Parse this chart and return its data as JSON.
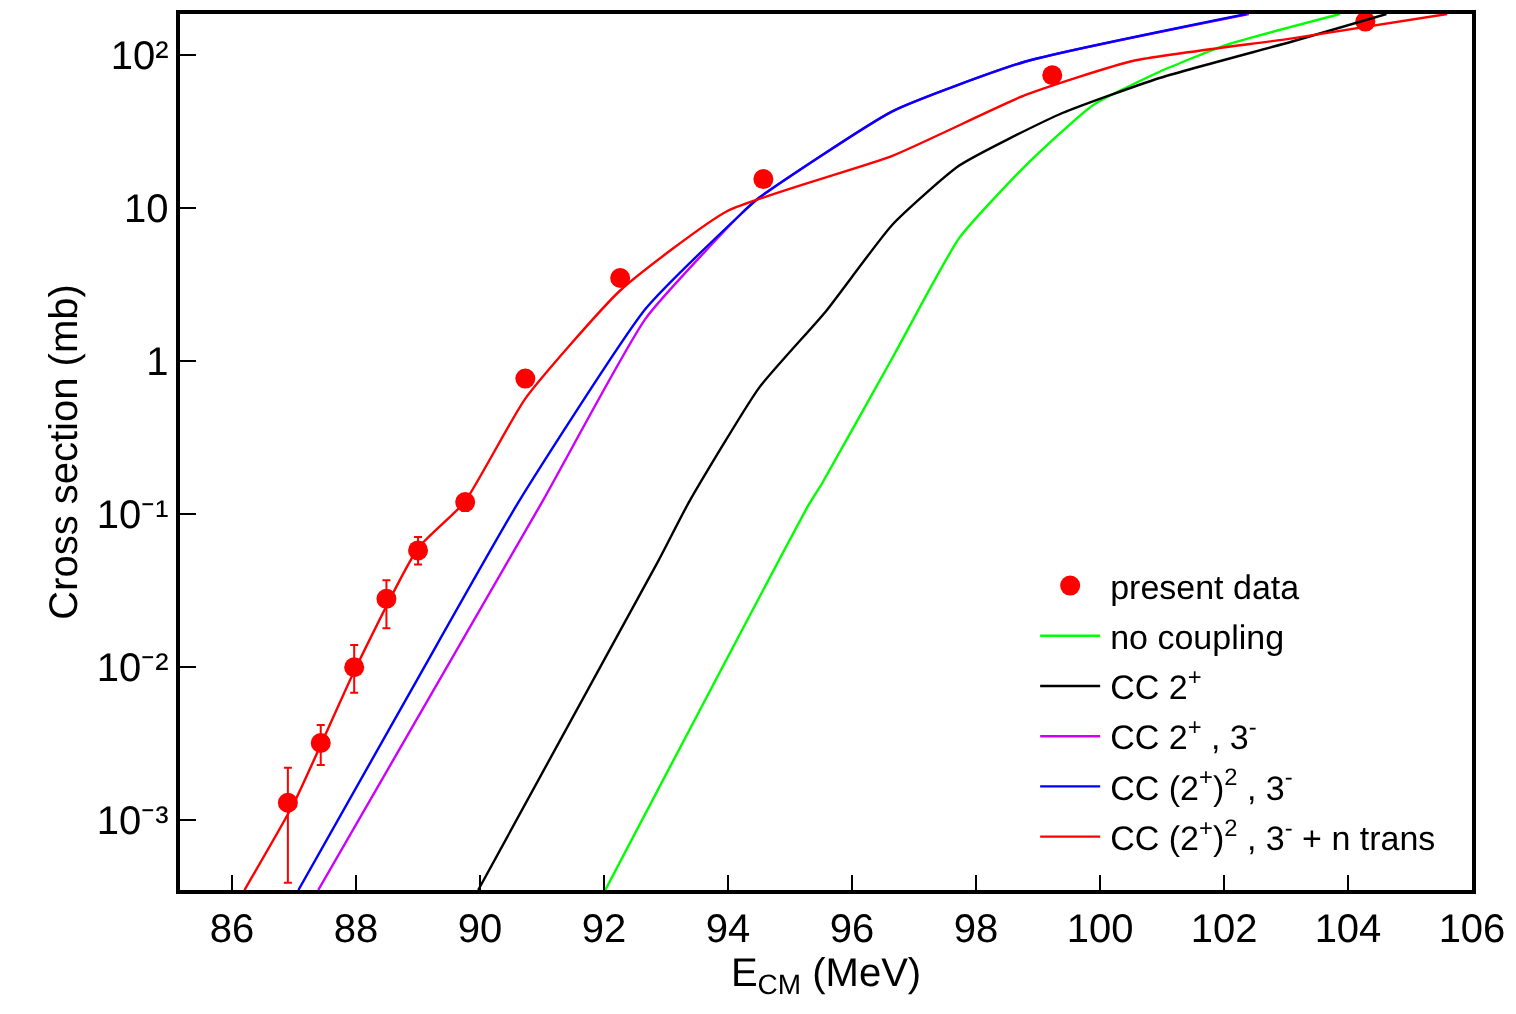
{
  "chart_data": {
    "type": "line",
    "xlabel": "E$_{CM}$ (MeV)",
    "ylabel": "Cross section (mb)",
    "log": "y",
    "legend": "bottom right",
    "xlim": [
      85.16,
      106
    ],
    "xticks": [
      86,
      88,
      90,
      92,
      94,
      96,
      98,
      100,
      102,
      104,
      106
    ],
    "ylim": [
      0.00035,
      186
    ],
    "yticks": [
      {
        "value": 0.001,
        "label": "10⁻³"
      },
      {
        "value": 0.01,
        "label": "10⁻²"
      },
      {
        "value": 0.1,
        "label": "10⁻¹"
      },
      1,
      10,
      {
        "value": 100,
        "label": "10²"
      }
    ],
    "series": [
      {
        "name": "present data",
        "type": "scatter",
        "marker": "circle",
        "color": "#ff0000",
        "x": [
          86.9,
          87.43,
          87.97,
          88.49,
          89.0,
          89.76,
          90.73,
          92.26,
          94.57,
          99.23,
          104.28
        ],
        "values": [
          0.0013,
          0.0032,
          0.01,
          0.028,
          0.058,
          0.12,
          0.77,
          3.5,
          15.5,
          74,
          166
        ],
        "errors": [
          [
            0.00039,
            0.0022
          ],
          [
            0.0023,
            0.0042
          ],
          [
            0.0068,
            0.014
          ],
          [
            0.018,
            0.037
          ],
          [
            0.047,
            0.071
          ],
          [
            0.105,
            0.135
          ],
          null,
          null,
          null,
          null,
          null
        ]
      },
      {
        "name": "no coupling",
        "marker": "none",
        "color": "#00ff00",
        "x": [
          92.02,
          95.3,
          95.52,
          96.65,
          97.73,
          98.8,
          99.88,
          100.96,
          102.04,
          103.87
        ],
        "values": [
          0.00035,
          0.115,
          0.16,
          1.05,
          6.4,
          19,
          47,
          78,
          117,
          186
        ]
      },
      {
        "name": "CC 2$^{+}$",
        "marker": "none",
        "color": "#000000",
        "x": [
          89.97,
          92.88,
          93.37,
          94.5,
          95.57,
          96.65,
          97.73,
          99.34,
          100.96,
          103.1,
          104.62
        ],
        "values": [
          0.00035,
          0.05,
          0.12,
          0.67,
          2.1,
          7.8,
          19,
          41,
          71,
          123,
          186
        ]
      },
      {
        "name": "CC 2$^{+}$ , 3$^{-}$",
        "marker": "none",
        "color": "#cc00ff",
        "x": [
          87.39,
          91.0,
          92.67,
          94.2,
          94.5,
          96.65,
          98.8,
          102.4
        ],
        "values": [
          0.00035,
          0.12,
          1.9,
          9.1,
          11.7,
          43,
          91,
          186
        ]
      },
      {
        "name": "CC (2$^{+}$)$^{2}$ , 3$^{-}$",
        "marker": "none",
        "color": "#0000ff",
        "x": [
          87.07,
          89.0,
          90.62,
          92.67,
          94.2,
          94.5,
          96.65,
          98.8,
          102.36
        ],
        "values": [
          0.00035,
          0.0085,
          0.12,
          2.2,
          9.1,
          11.7,
          43,
          91,
          186
        ]
      },
      {
        "name": "CC (2$^{+}$)$^{2}$ , 3$^{-}$ + n trans",
        "marker": "none",
        "color": "#ff0000",
        "x": [
          86.2,
          87.0,
          88.0,
          89.0,
          89.75,
          90.73,
          92.26,
          93.99,
          96.65,
          98.8,
          100.54,
          103.1,
          105.6
        ],
        "values": [
          0.00035,
          0.0013,
          0.01,
          0.06,
          0.12,
          0.57,
          2.9,
          9.6,
          22,
          55,
          92,
          129,
          186
        ]
      }
    ]
  }
}
